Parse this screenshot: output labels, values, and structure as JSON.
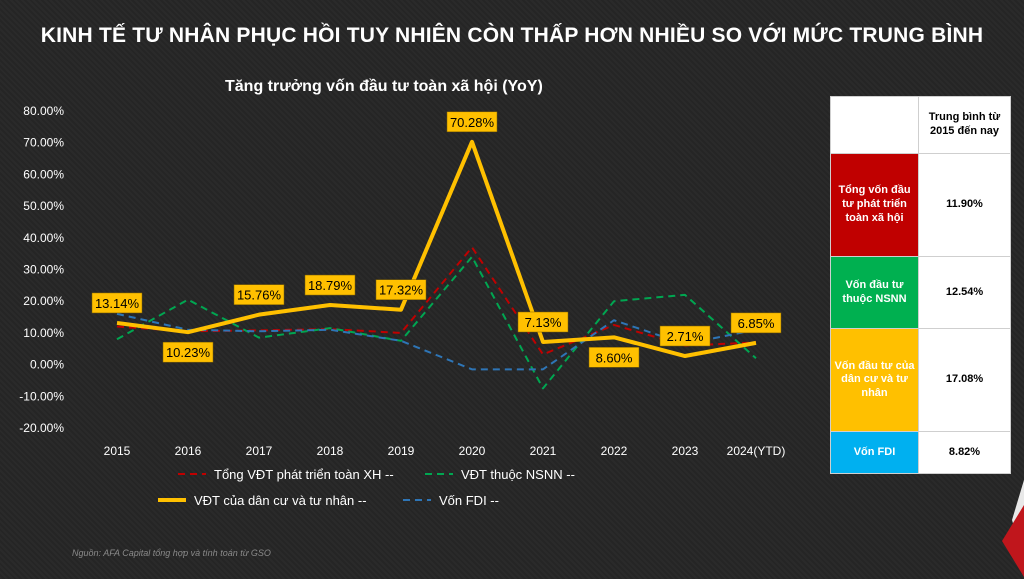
{
  "page": {
    "title": "KINH TẾ TƯ NHÂN PHỤC HỒI TUY NHIÊN CÒN THẤP HƠN NHIỀU SO VỚI MỨC TRUNG BÌNH",
    "source": "Nguồn: AFA Capital tổng hợp và tính toán từ GSO"
  },
  "chart_data": {
    "type": "line",
    "title": "Tăng trưởng vốn đầu tư toàn xã hội (YoY)",
    "xlabel": "",
    "ylabel": "",
    "ylim": [
      -20,
      80
    ],
    "ytick_step": 10,
    "ytick_labels": [
      "80.00%",
      "70.00%",
      "60.00%",
      "50.00%",
      "40.00%",
      "30.00%",
      "20.00%",
      "10.00%",
      "0.00%",
      "-10.00%",
      "-20.00%"
    ],
    "grid": false,
    "legend_position": "bottom",
    "categories": [
      "2015",
      "2016",
      "2017",
      "2018",
      "2019",
      "2020",
      "2021",
      "2022",
      "2023",
      "2024(YTD)"
    ],
    "series": [
      {
        "name": "Tổng VĐT phát triển toàn XH",
        "legend_label": "Tổng VĐT phát triển toàn XH --",
        "color": "#c00000",
        "style": "dashed",
        "values": [
          12.0,
          10.5,
          10.8,
          11.2,
          10.0,
          37.0,
          3.2,
          12.5,
          6.0,
          7.0
        ]
      },
      {
        "name": "VĐT thuộc NSNN",
        "legend_label": "VĐT thuộc NSNN --",
        "color": "#00a651",
        "style": "dashed",
        "values": [
          8.0,
          20.5,
          8.5,
          11.5,
          7.5,
          34.0,
          -7.5,
          20.0,
          22.0,
          2.0
        ]
      },
      {
        "name": "VĐT của dân cư và tư nhân",
        "legend_label": "VĐT của dân cư và tư nhân --",
        "color": "#ffc000",
        "style": "solid",
        "values": [
          13.14,
          10.23,
          15.76,
          18.79,
          17.32,
          70.28,
          7.13,
          8.6,
          2.71,
          6.85
        ],
        "data_labels": [
          "13.14%",
          "10.23%",
          "15.76%",
          "18.79%",
          "17.32%",
          "70.28%",
          "7.13%",
          "8.60%",
          "2.71%",
          "6.85%"
        ]
      },
      {
        "name": "Vốn FDI",
        "legend_label": "Vốn FDI --",
        "color": "#2e75b6",
        "style": "dashed",
        "values": [
          16.0,
          11.0,
          10.5,
          11.0,
          7.5,
          -1.5,
          -1.5,
          14.0,
          6.5,
          11.0
        ]
      }
    ]
  },
  "avg_table": {
    "header": "Trung bình từ 2015 đến nay",
    "rows": [
      {
        "label": "Tổng vốn đầu tư phát triển toàn xã hội",
        "value": "11.90%",
        "color": "#c00000"
      },
      {
        "label": "Vốn đầu tư thuộc NSNN",
        "value": "12.54%",
        "color": "#00b050"
      },
      {
        "label": "Vốn đầu tư của dân cư và tư nhân",
        "value": "17.08%",
        "color": "#ffc000"
      },
      {
        "label": "Vốn FDI",
        "value": "8.82%",
        "color": "#00b0f0"
      }
    ]
  }
}
